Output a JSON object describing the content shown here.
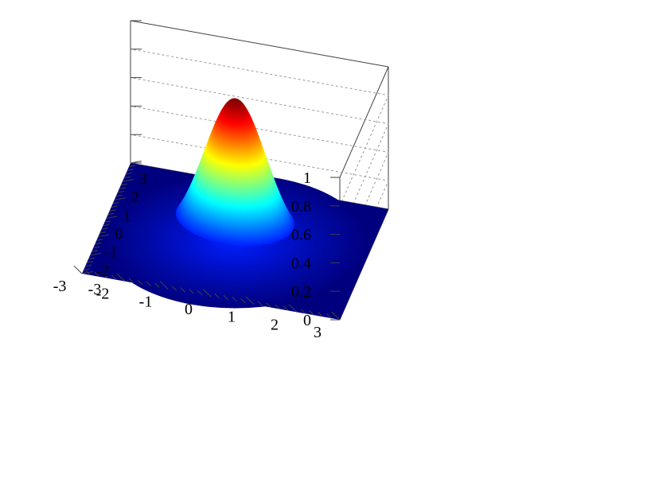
{
  "chart_data": {
    "type": "surface",
    "function": "exp(-(x^2+y^2))",
    "x_range": [
      -3,
      3
    ],
    "y_range": [
      -3,
      3
    ],
    "zlim": [
      0,
      1
    ],
    "peak": 1,
    "colormap": "jet",
    "x_ticks": [
      "-3",
      "-2",
      "-1",
      "0",
      "1",
      "2",
      "3"
    ],
    "y_ticks": [
      "-3",
      "-2",
      "-1",
      "0",
      "1",
      "2",
      "3"
    ],
    "z_ticks": [
      "0",
      "0.2",
      "0.4",
      "0.6",
      "0.8",
      "1"
    ],
    "grid": "dashed, back walls",
    "colors": {
      "floor": "#00007f",
      "axis_line": "#404040",
      "grid": "#9a9a9a"
    }
  }
}
